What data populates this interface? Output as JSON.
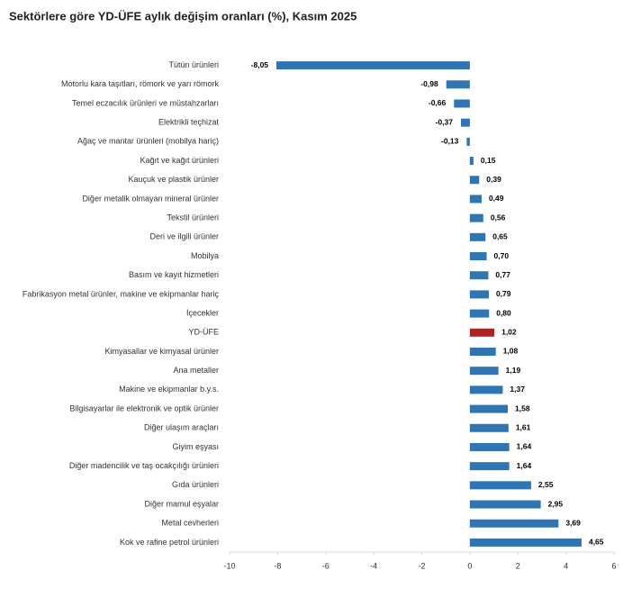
{
  "chart_data": {
    "type": "hbar",
    "title": "Sektörlere göre YD-ÜFE aylık değişim oranları (%), Kasım 2025",
    "categories": [
      "Tütün ürünleri",
      "Motorlu kara taşıtları, römork ve yarı römork",
      "Temel eczacılık ürünleri ve müstahzarları",
      "Elektrikli teçhizat",
      "Ağaç ve mantar ürünleri (mobilya hariç)",
      "Kağıt ve kağıt ürünleri",
      "Kauçuk ve plastik ürünler",
      "Diğer metalik olmayan mineral ürünler",
      "Tekstil ürünleri",
      "Deri ve ilgili ürünler",
      "Mobilya",
      "Basım ve kayıt hizmetleri",
      "Fabrikasyon metal ürünler, makine ve ekipmanlar hariç",
      "İçecekler",
      "YD-ÜFE",
      "Kimyasallar ve kimyasal ürünler",
      "Ana metaller",
      "Makine ve ekipmanlar b.y.s.",
      "Bilgisayarlar ile elektronik ve optik ürünler",
      "Diğer ulaşım araçları",
      "Giyim eşyası",
      "Diğer madencilik ve taş ocakçılığı ürünleri",
      "Gıda ürünleri",
      "Diğer mamul eşyalar",
      "Metal cevherleri",
      "Kok ve rafine petrol ürünleri"
    ],
    "values": [
      -8.05,
      -0.98,
      -0.66,
      -0.37,
      -0.13,
      0.15,
      0.39,
      0.49,
      0.56,
      0.65,
      0.7,
      0.77,
      0.79,
      0.8,
      1.02,
      1.08,
      1.19,
      1.37,
      1.58,
      1.61,
      1.64,
      1.64,
      2.55,
      2.95,
      3.69,
      4.65
    ],
    "value_labels": [
      "-8,05",
      "-0,98",
      "-0,66",
      "-0,37",
      "-0,13",
      "0,15",
      "0,39",
      "0,49",
      "0,56",
      "0,65",
      "0,70",
      "0,77",
      "0,79",
      "0,80",
      "1,02",
      "1,08",
      "1,19",
      "1,37",
      "1,58",
      "1,61",
      "1,64",
      "1,64",
      "2,55",
      "2,95",
      "3,69",
      "4,65"
    ],
    "colors": [
      "#2e75b6",
      "#2e75b6",
      "#2e75b6",
      "#2e75b6",
      "#2e75b6",
      "#2e75b6",
      "#2e75b6",
      "#2e75b6",
      "#2e75b6",
      "#2e75b6",
      "#2e75b6",
      "#2e75b6",
      "#2e75b6",
      "#2e75b6",
      "#b22222",
      "#2e75b6",
      "#2e75b6",
      "#2e75b6",
      "#2e75b6",
      "#2e75b6",
      "#2e75b6",
      "#2e75b6",
      "#2e75b6",
      "#2e75b6",
      "#2e75b6",
      "#2e75b6"
    ],
    "xlim": [
      -10,
      6
    ],
    "xticks": [
      -10,
      -8,
      -6,
      -4,
      -2,
      0,
      2,
      4,
      6
    ]
  }
}
